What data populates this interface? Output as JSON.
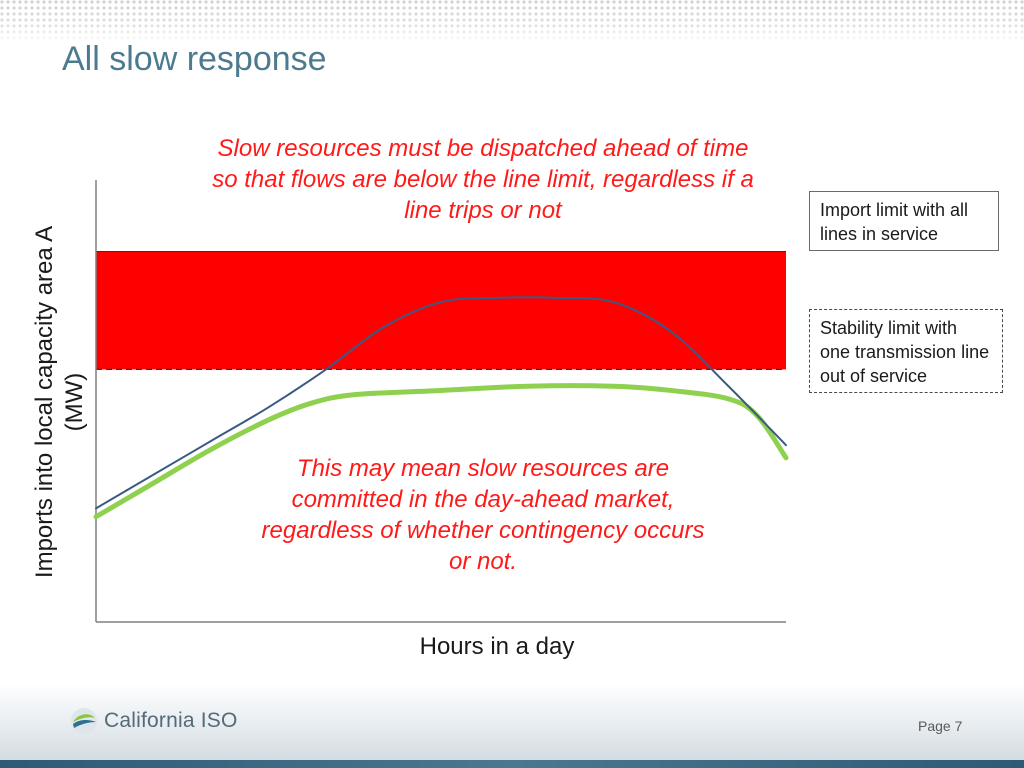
{
  "slide": {
    "title": "All slow response",
    "page": "Page 7"
  },
  "annotations": {
    "top": "Slow resources must be dispatched ahead of time so that flows are below the line limit, regardless if a line trips or not",
    "middle": "This may mean slow resources are committed in the day-ahead market, regardless of whether contingency occurs or not."
  },
  "legend": {
    "import_limit": "Import limit with all lines in service",
    "stability_limit": "Stability limit with one transmission line out of service"
  },
  "logo": {
    "text": "California ISO",
    "icon": "california-iso-logo-icon"
  },
  "colors": {
    "title": "#4c7a8f",
    "annotation": "#ff1a1a",
    "band": "#ff0000",
    "blue_line": "#3a5a85",
    "green_line": "#8fd04f"
  },
  "chart_data": {
    "type": "line",
    "xlabel": "Hours in a day",
    "ylabel": "Imports into local capacity area A (MW)",
    "xlim": [
      0,
      24
    ],
    "ylim": [
      0,
      100
    ],
    "grid": false,
    "limits": {
      "import_limit": 88,
      "stability_limit": 60
    },
    "series": [
      {
        "name": "",
        "color": "#3a5a85",
        "x": [
          0,
          2,
          4,
          6,
          8,
          10,
          12,
          14,
          16,
          18,
          20,
          22,
          24
        ],
        "y": [
          27,
          35,
          43,
          51,
          60,
          70,
          76,
          77,
          77,
          76,
          69,
          56,
          42
        ]
      },
      {
        "name": "",
        "color": "#8fd04f",
        "x": [
          0,
          2,
          4,
          6,
          7.5,
          9,
          12,
          15,
          18,
          20,
          22,
          23,
          24
        ],
        "y": [
          25,
          33,
          41,
          48,
          52,
          54,
          55,
          56,
          56,
          55,
          53,
          49,
          39
        ]
      }
    ]
  }
}
